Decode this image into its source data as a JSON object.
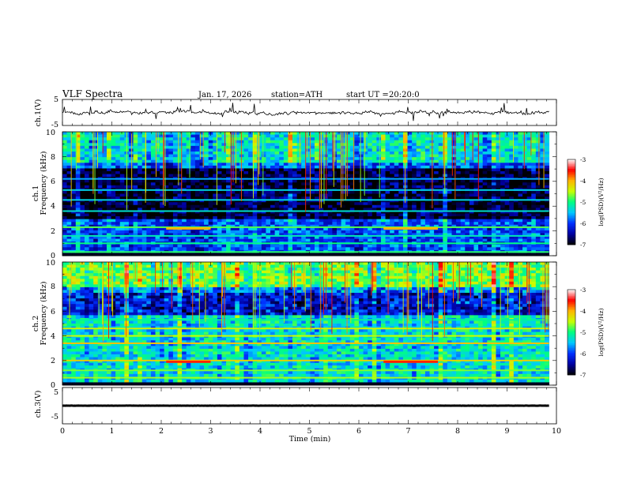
{
  "chart_data": {
    "type": "heatmap",
    "title": "VLF Spectra",
    "date": "Jan. 17, 2026",
    "station": "station=ATH",
    "start_ut": "start UT =",
    "start_time": "20:20:0",
    "xlabel": "Time (min)",
    "xlim": [
      0,
      10
    ],
    "x_ticks": [
      "0",
      "1",
      "2",
      "3",
      "4",
      "5",
      "6",
      "7",
      "8",
      "9",
      "10"
    ],
    "data_end_min": 9.85,
    "waveform_panels": [
      {
        "name": "ch1",
        "ylabel": "ch.1(V)",
        "ylim": [
          -5,
          5
        ],
        "y_ticks": [
          "5",
          "-5"
        ],
        "trace": "noise",
        "mean": 0.0
      },
      {
        "name": "ch3",
        "ylabel": "ch.3(V)",
        "ylim": [
          -5,
          5
        ],
        "y_ticks": [
          "5",
          "-5"
        ],
        "trace": "flat",
        "mean": 0.0
      }
    ],
    "spectrogram_panels": [
      {
        "name": "ch1",
        "channel_label": "ch.1",
        "ylabel": "Frequency (kHz)",
        "ylim": [
          0,
          10
        ],
        "y_ticks": [
          "0",
          "2",
          "4",
          "6",
          "8",
          "10"
        ],
        "background_log_psd": -5.9,
        "quiet_band_khz": [
          3.0,
          7.0
        ],
        "line_emissions": [
          {
            "freq_khz": 0.3,
            "log_psd": -4.9
          },
          {
            "freq_khz": 1.0,
            "log_psd": -5.0
          },
          {
            "freq_khz": 1.6,
            "log_psd": -5.2
          },
          {
            "freq_khz": 2.3,
            "log_psd": -4.8
          },
          {
            "freq_khz": 3.6,
            "log_psd": -5.3
          },
          {
            "freq_khz": 4.5,
            "log_psd": -5.4
          },
          {
            "freq_khz": 5.3,
            "log_psd": -5.4
          },
          {
            "freq_khz": 6.2,
            "log_psd": -5.6
          }
        ],
        "bursts": [
          {
            "t_start_min": 2.1,
            "t_end_min": 3.0,
            "freq_khz": 2.2,
            "log_psd": -4.0
          },
          {
            "t_start_min": 6.5,
            "t_end_min": 7.6,
            "freq_khz": 2.2,
            "log_psd": -4.0
          }
        ],
        "colorbar": {
          "label": "log(PSD)(V²/Hz)",
          "range": [
            -7,
            -3
          ],
          "ticks": [
            "-3",
            "-4",
            "-5",
            "-6",
            "-7"
          ]
        }
      },
      {
        "name": "ch2",
        "channel_label": "ch.2",
        "ylabel": "Frequency (kHz)",
        "ylim": [
          0,
          10
        ],
        "y_ticks": [
          "0",
          "2",
          "4",
          "6",
          "8",
          "10"
        ],
        "background_log_psd": -5.3,
        "quiet_band_khz": [
          5.6,
          8.0
        ],
        "line_emissions": [
          {
            "freq_khz": 0.6,
            "log_psd": -4.6
          },
          {
            "freq_khz": 1.2,
            "log_psd": -4.7
          },
          {
            "freq_khz": 2.0,
            "log_psd": -4.2
          },
          {
            "freq_khz": 3.4,
            "log_psd": -4.1
          },
          {
            "freq_khz": 4.0,
            "log_psd": -4.5
          },
          {
            "freq_khz": 4.6,
            "log_psd": -4.4
          },
          {
            "freq_khz": 5.3,
            "log_psd": -5.1
          }
        ],
        "bursts": [
          {
            "t_start_min": 2.1,
            "t_end_min": 3.0,
            "freq_khz": 1.9,
            "log_psd": -3.6
          },
          {
            "t_start_min": 6.5,
            "t_end_min": 7.6,
            "freq_khz": 1.9,
            "log_psd": -3.6
          }
        ],
        "colorbar": {
          "label": "log(PSD)(V²/Hz)",
          "range": [
            -7,
            -3
          ],
          "ticks": [
            "-3",
            "-4",
            "-5",
            "-6",
            "-7"
          ]
        }
      }
    ],
    "colormap": [
      "#000000",
      "#0000a0",
      "#0030ff",
      "#00c8ff",
      "#00ff80",
      "#c8ff00",
      "#ffb400",
      "#ff0000",
      "#ffffff"
    ]
  }
}
